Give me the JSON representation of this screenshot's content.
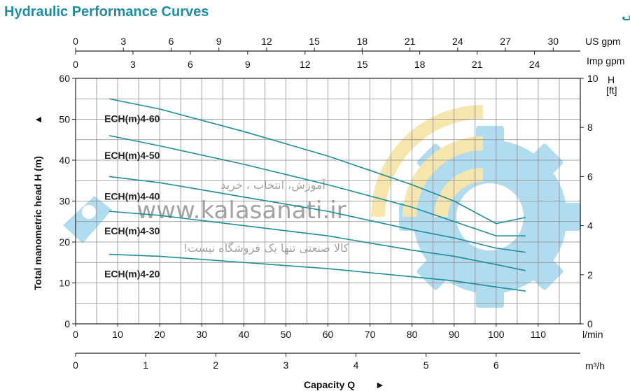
{
  "header": {
    "title_en": "Hydraulic Performance Curves",
    "title_fa": "منحنی عملکرد هیدرولیکی"
  },
  "watermark": {
    "line1": "آموزش، انتخاب ، خرید",
    "line2": "www.kalasanati.ir",
    "line3": "کالا صنعتی تنها یک فروشگاه نیست!",
    "colors": {
      "gear": "#a9d9ef",
      "waves": "#f6e3a4"
    }
  },
  "chart_data": {
    "type": "line",
    "title": "Hydraulic Performance Curves",
    "ylabel": "Total manometric head H (m)",
    "ylabel_arrow": "▲",
    "xlabel": "Capacity Q",
    "xlabel_arrow": "►",
    "colors": {
      "curve": "#1e8c99",
      "grid": "#888888"
    },
    "grid": true,
    "xlim": [
      0,
      120
    ],
    "ylim": [
      0,
      60
    ],
    "x_ticks_lmin": [
      0,
      10,
      20,
      30,
      40,
      50,
      60,
      70,
      80,
      90,
      100,
      110
    ],
    "x_unit_lmin": "l/min",
    "y_ticks_m": [
      0,
      10,
      20,
      30,
      40,
      50,
      60
    ],
    "top_axis_us_gpm": {
      "label": "US gpm",
      "ticks": [
        0,
        3,
        6,
        9,
        12,
        15,
        18,
        21,
        24,
        27,
        30
      ]
    },
    "top_axis_imp_gpm": {
      "label": "Imp gpm",
      "ticks": [
        0,
        3,
        6,
        9,
        12,
        15,
        18,
        21,
        24
      ]
    },
    "right_axis_ft": {
      "label_top": "H",
      "label_unit": "[ft]",
      "ticks": [
        0,
        2,
        4,
        6,
        8,
        10
      ]
    },
    "bottom_axis_m3h": {
      "label": "m³/h",
      "ticks": [
        0,
        1,
        2,
        3,
        4,
        5,
        6
      ]
    },
    "series": [
      {
        "name": "ECH(m)4-60",
        "x": [
          8,
          20,
          40,
          60,
          80,
          90,
          100,
          107
        ],
        "values": [
          55,
          52.5,
          47,
          41,
          34,
          30,
          24.5,
          26
        ]
      },
      {
        "name": "ECH(m)4-50",
        "x": [
          8,
          20,
          40,
          60,
          80,
          90,
          100,
          107
        ],
        "values": [
          46,
          43.5,
          39,
          34,
          28.5,
          25,
          21.5,
          21.5
        ]
      },
      {
        "name": "ECH(m)4-40",
        "x": [
          8,
          20,
          40,
          60,
          80,
          90,
          100,
          107
        ],
        "values": [
          36,
          34.5,
          31,
          27.5,
          23,
          21,
          18.5,
          17.5
        ]
      },
      {
        "name": "ECH(m)4-30",
        "x": [
          8,
          20,
          40,
          60,
          80,
          90,
          100,
          107
        ],
        "values": [
          27.5,
          26.5,
          24,
          21.5,
          18,
          16.5,
          14.5,
          13
        ]
      },
      {
        "name": "ECH(m)4-20",
        "x": [
          8,
          20,
          40,
          60,
          80,
          90,
          100,
          107
        ],
        "values": [
          17,
          16.5,
          15,
          13.5,
          11.5,
          10.5,
          9,
          8
        ]
      }
    ]
  }
}
